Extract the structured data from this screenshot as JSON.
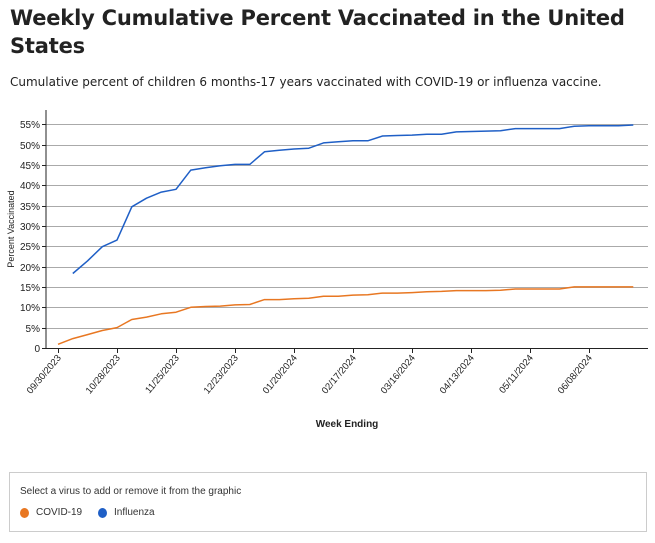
{
  "header": {
    "title": "Weekly Cumulative Percent Vaccinated in the United States",
    "subtitle": "Cumulative percent of children 6 months-17 years vaccinated with COVID-19 or influenza vaccine."
  },
  "legend": {
    "title": "Select a virus to add or remove it from the graphic",
    "items": [
      {
        "label": "COVID-19",
        "color": "#e87722"
      },
      {
        "label": "Influenza",
        "color": "#1f5fc6"
      }
    ]
  },
  "chart_data": {
    "type": "line",
    "title": "Weekly Cumulative Percent Vaccinated in the United States",
    "xlabel": "Week Ending",
    "ylabel": "Percent Vaccinated",
    "ylim": [
      0,
      57
    ],
    "yticks": [
      "0",
      "5%",
      "10%",
      "15%",
      "20%",
      "25%",
      "30%",
      "35%",
      "40%",
      "45%",
      "50%",
      "55%"
    ],
    "ytick_values": [
      0,
      5,
      10,
      15,
      20,
      25,
      30,
      35,
      40,
      45,
      50,
      55
    ],
    "xticks": [
      "09/30/2023",
      "10/28/2023",
      "11/25/2023",
      "12/23/2023",
      "01/20/2024",
      "02/17/2024",
      "03/16/2024",
      "04/13/2024",
      "05/11/2024",
      "06/08/2024"
    ],
    "xtick_weeks": [
      0,
      4,
      8,
      12,
      16,
      20,
      24,
      28,
      32,
      36
    ],
    "x_weeks_total": 39,
    "grid": true,
    "series": [
      {
        "name": "COVID-19",
        "color": "#e87722",
        "start_week": 0,
        "values": [
          0.9,
          2.3,
          3.3,
          4.3,
          5.0,
          7.0,
          7.6,
          8.4,
          8.8,
          10.0,
          10.2,
          10.3,
          10.6,
          10.7,
          11.9,
          11.9,
          12.1,
          12.2,
          12.7,
          12.7,
          13.0,
          13.1,
          13.5,
          13.5,
          13.6,
          13.8,
          13.9,
          14.1,
          14.1,
          14.1,
          14.2,
          14.5,
          14.5,
          14.5,
          14.5,
          15.0,
          15.0,
          15.0,
          15.0,
          15.0
        ]
      },
      {
        "name": "Influenza",
        "color": "#1f5fc6",
        "start_week": 1,
        "values": [
          18.3,
          21.4,
          24.9,
          26.5,
          34.7,
          36.8,
          38.3,
          39.0,
          43.7,
          44.3,
          44.8,
          45.1,
          45.1,
          48.2,
          48.6,
          48.9,
          49.1,
          50.4,
          50.7,
          50.9,
          50.9,
          52.1,
          52.2,
          52.3,
          52.5,
          52.5,
          53.1,
          53.2,
          53.3,
          53.4,
          53.9,
          53.9,
          53.9,
          53.9,
          54.5,
          54.6,
          54.6,
          54.6,
          54.8
        ]
      }
    ]
  }
}
